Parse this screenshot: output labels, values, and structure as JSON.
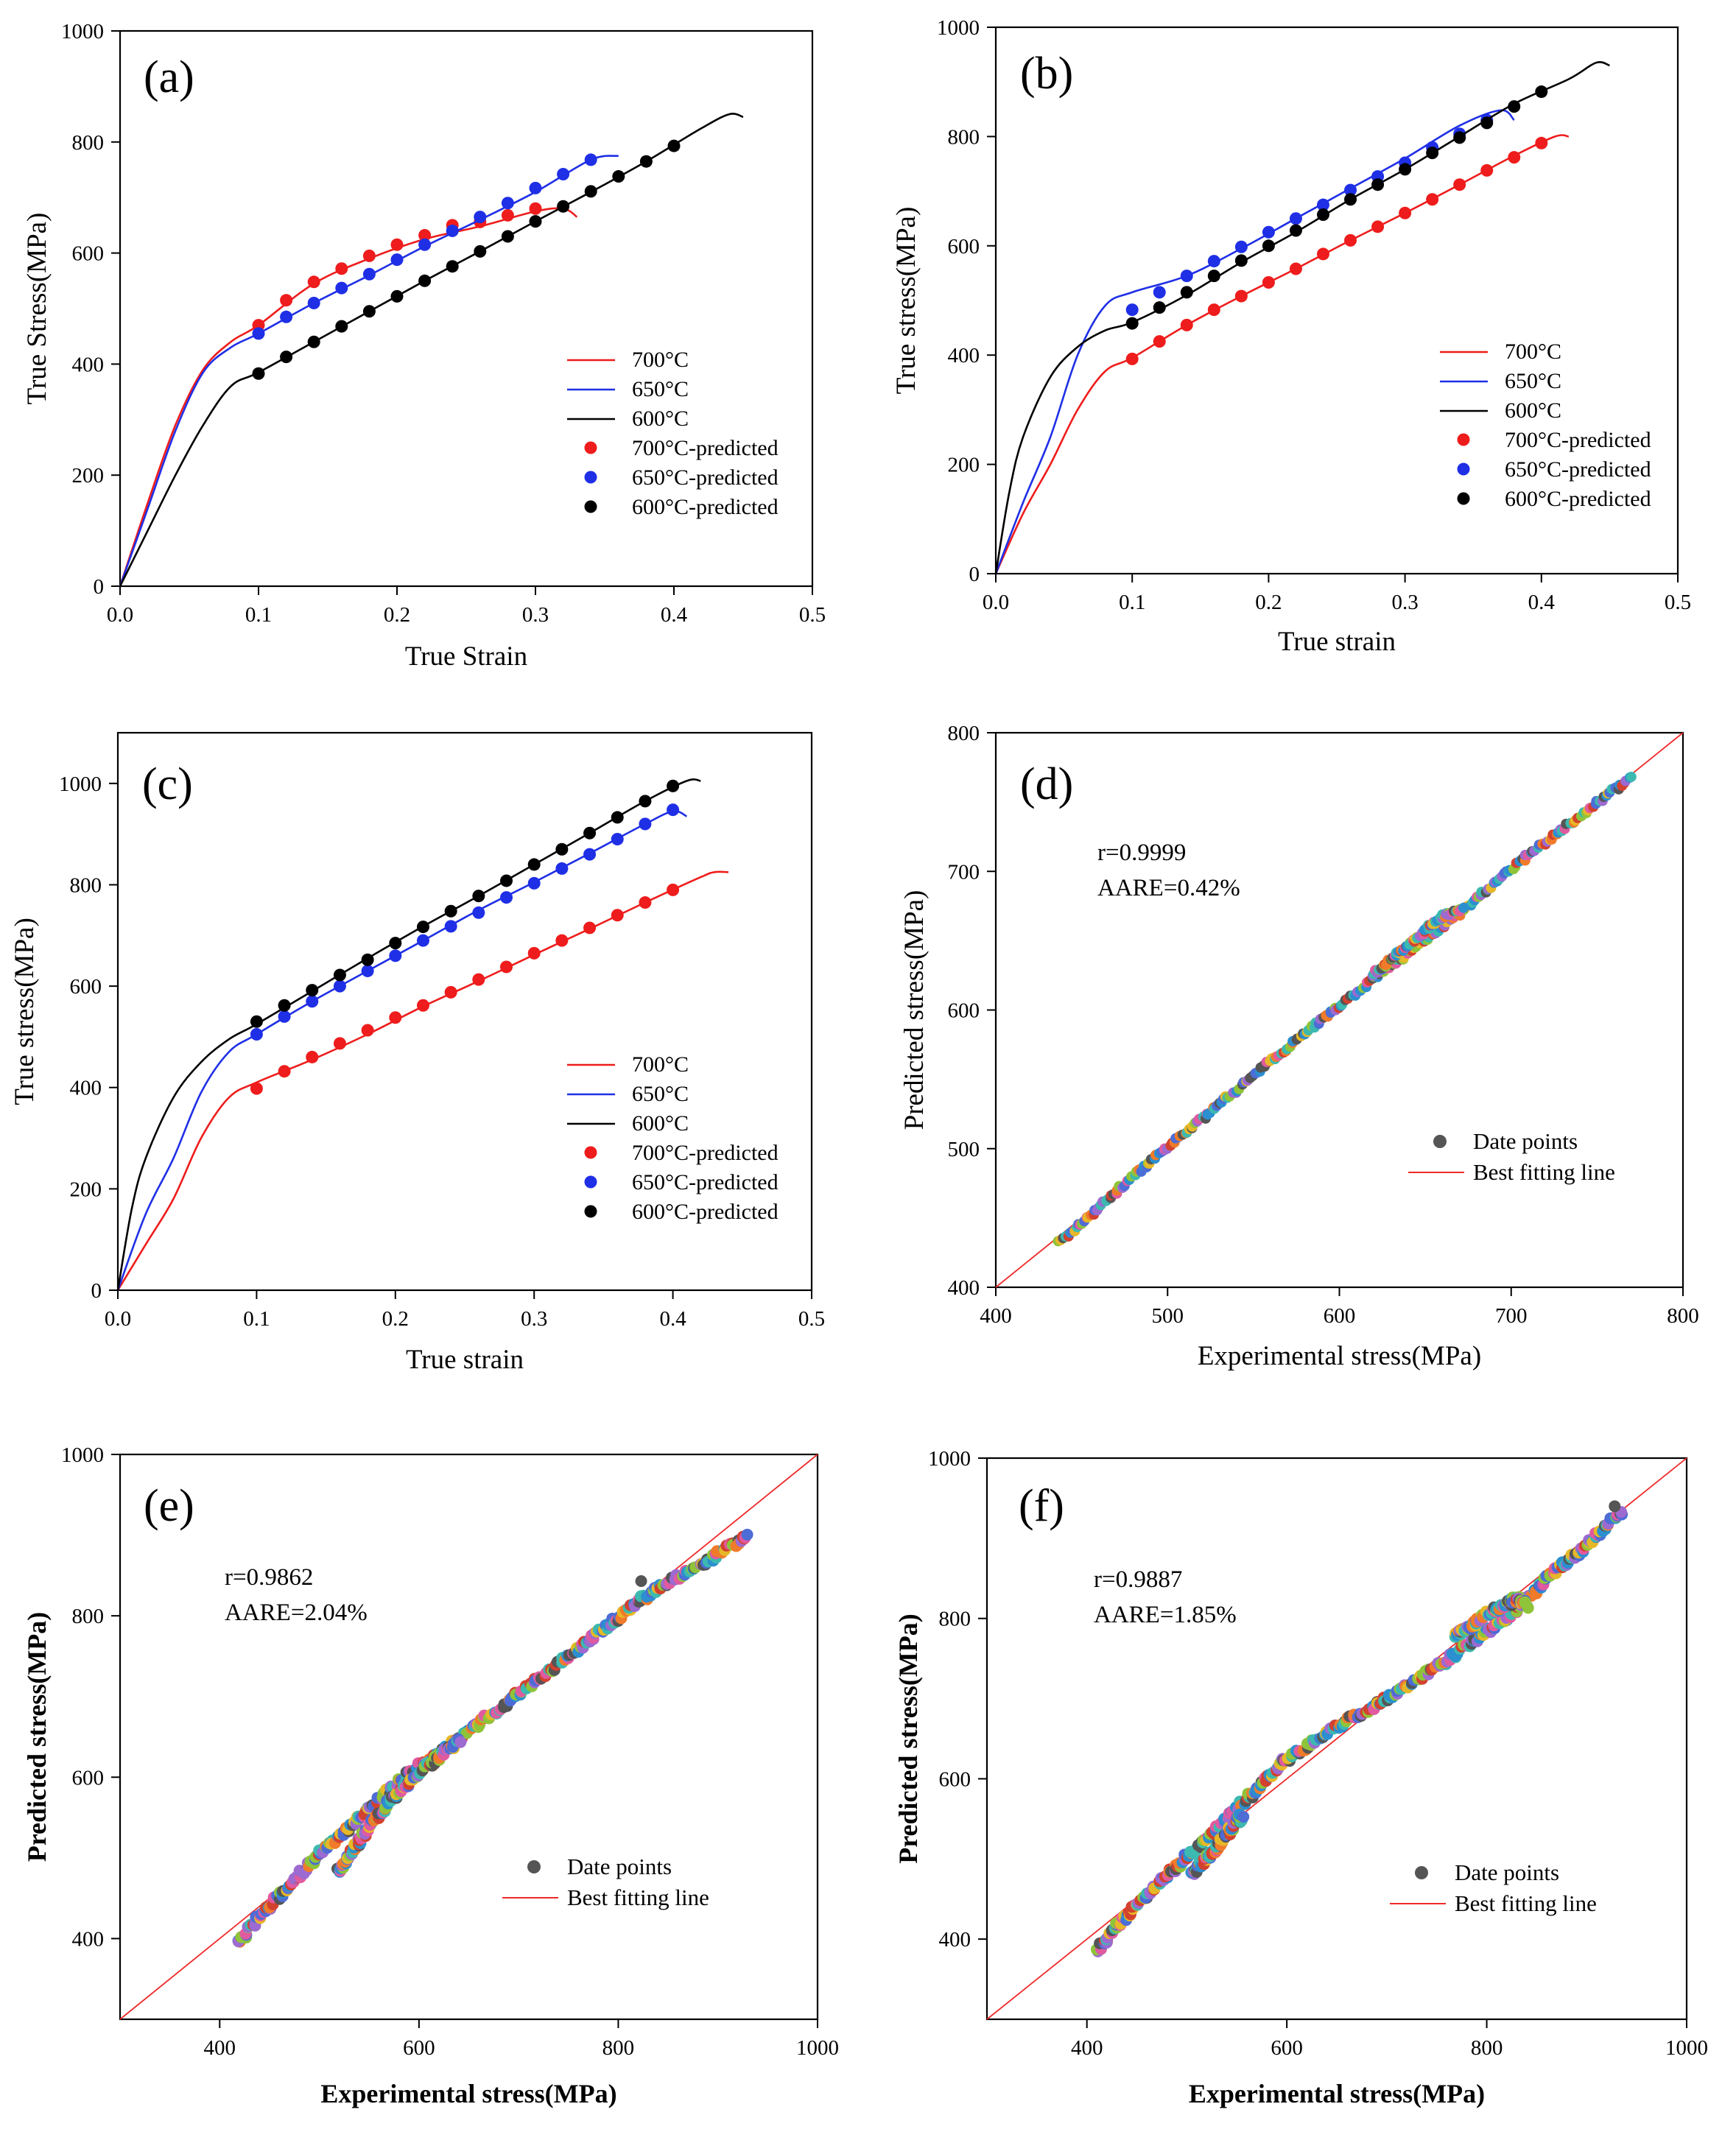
{
  "colors": {
    "c700": "#ee1c1c",
    "c650": "#1f2fe6",
    "c600": "#000000",
    "axis": "#000000",
    "fit": "#ee2a2a",
    "dot": "#555555"
  },
  "chart_data": [
    {
      "id": "a",
      "panel": "(a)",
      "type": "line",
      "xlabel": "True Strain",
      "ylabel": "True Stress(MPa)",
      "xlim": [
        0,
        0.5
      ],
      "ylim": [
        0,
        1000
      ],
      "xticks": [
        "0.0",
        "0.1",
        "0.2",
        "0.3",
        "0.4",
        "0.5"
      ],
      "yticks": [
        "0",
        "200",
        "400",
        "600",
        "800",
        "1000"
      ],
      "legend": {
        "position": "center-right",
        "lines": [
          "700°C",
          "650°C",
          "600°C"
        ],
        "markers": [
          "700°C-predicted",
          "650°C-predicted",
          "600°C-predicted"
        ]
      },
      "series": [
        {
          "name": "700°C",
          "color": "#ee1c1c",
          "x": [
            0,
            0.02,
            0.04,
            0.06,
            0.08,
            0.1,
            0.14,
            0.18,
            0.22,
            0.26,
            0.3,
            0.32,
            0.33
          ],
          "y": [
            0,
            150,
            290,
            390,
            440,
            470,
            545,
            590,
            625,
            648,
            675,
            680,
            665
          ],
          "px": [
            0.1,
            0.12,
            0.14,
            0.16,
            0.18,
            0.2,
            0.22,
            0.24,
            0.26,
            0.28,
            0.3
          ],
          "py": [
            470,
            515,
            548,
            572,
            595,
            615,
            632,
            650,
            656,
            668,
            680
          ]
        },
        {
          "name": "650°C",
          "color": "#1f2fe6",
          "x": [
            0,
            0.02,
            0.04,
            0.06,
            0.08,
            0.1,
            0.14,
            0.18,
            0.22,
            0.26,
            0.3,
            0.34,
            0.36
          ],
          "y": [
            0,
            140,
            280,
            385,
            430,
            455,
            510,
            560,
            612,
            660,
            710,
            768,
            775
          ],
          "px": [
            0.1,
            0.12,
            0.14,
            0.16,
            0.18,
            0.2,
            0.22,
            0.24,
            0.26,
            0.28,
            0.3,
            0.32,
            0.34
          ],
          "py": [
            455,
            485,
            510,
            537,
            562,
            588,
            615,
            640,
            665,
            690,
            717,
            742,
            768
          ]
        },
        {
          "name": "600°C",
          "color": "#000000",
          "x": [
            0,
            0.02,
            0.04,
            0.06,
            0.08,
            0.1,
            0.14,
            0.18,
            0.22,
            0.26,
            0.3,
            0.34,
            0.38,
            0.42,
            0.44,
            0.45
          ],
          "y": [
            0,
            100,
            200,
            290,
            360,
            385,
            440,
            495,
            550,
            603,
            657,
            710,
            765,
            825,
            850,
            845
          ],
          "px": [
            0.1,
            0.12,
            0.14,
            0.16,
            0.18,
            0.2,
            0.22,
            0.24,
            0.26,
            0.28,
            0.3,
            0.32,
            0.34,
            0.36,
            0.38,
            0.4
          ],
          "py": [
            383,
            413,
            440,
            468,
            495,
            522,
            550,
            576,
            603,
            630,
            657,
            684,
            711,
            738,
            765,
            793
          ]
        }
      ]
    },
    {
      "id": "b",
      "panel": "(b)",
      "type": "line",
      "xlabel": "True strain",
      "ylabel": "True stress(MPa)",
      "xlim": [
        0,
        0.5
      ],
      "ylim": [
        0,
        1000
      ],
      "xticks": [
        "0.0",
        "0.1",
        "0.2",
        "0.3",
        "0.4",
        "0.5"
      ],
      "yticks": [
        "0",
        "200",
        "400",
        "600",
        "800",
        "1000"
      ],
      "legend": {
        "position": "center-right",
        "lines": [
          "700°C",
          "650°C",
          "600°C"
        ],
        "markers": [
          "700°C-predicted",
          "650°C-predicted",
          "600°C-predicted"
        ]
      },
      "series": [
        {
          "name": "700°C",
          "color": "#ee1c1c",
          "x": [
            0,
            0.02,
            0.04,
            0.06,
            0.08,
            0.1,
            0.14,
            0.18,
            0.22,
            0.26,
            0.3,
            0.34,
            0.38,
            0.41,
            0.42
          ],
          "y": [
            0,
            110,
            200,
            300,
            370,
            395,
            455,
            508,
            558,
            610,
            660,
            712,
            765,
            800,
            800
          ],
          "px": [
            0.1,
            0.12,
            0.14,
            0.16,
            0.18,
            0.2,
            0.22,
            0.24,
            0.26,
            0.28,
            0.3,
            0.32,
            0.34,
            0.36,
            0.38,
            0.4
          ],
          "py": [
            393,
            425,
            455,
            483,
            508,
            533,
            558,
            585,
            610,
            635,
            660,
            685,
            712,
            738,
            762,
            788
          ]
        },
        {
          "name": "650°C",
          "color": "#1f2fe6",
          "x": [
            0,
            0.02,
            0.04,
            0.06,
            0.08,
            0.1,
            0.14,
            0.18,
            0.22,
            0.26,
            0.3,
            0.34,
            0.37,
            0.38
          ],
          "y": [
            0,
            130,
            250,
            400,
            490,
            515,
            545,
            595,
            650,
            705,
            760,
            820,
            848,
            830
          ],
          "px": [
            0.1,
            0.12,
            0.14,
            0.16,
            0.18,
            0.2,
            0.22,
            0.24,
            0.26,
            0.28,
            0.3,
            0.32,
            0.34,
            0.36
          ],
          "py": [
            483,
            515,
            545,
            572,
            598,
            625,
            650,
            675,
            702,
            727,
            752,
            780,
            805,
            830
          ]
        },
        {
          "name": "600°C",
          "color": "#000000",
          "x": [
            0,
            0.01,
            0.02,
            0.04,
            0.06,
            0.08,
            0.1,
            0.14,
            0.18,
            0.22,
            0.26,
            0.3,
            0.34,
            0.38,
            0.42,
            0.44,
            0.45
          ],
          "y": [
            0,
            150,
            250,
            360,
            415,
            445,
            460,
            510,
            570,
            625,
            685,
            740,
            800,
            860,
            905,
            935,
            930
          ],
          "px": [
            0.1,
            0.12,
            0.14,
            0.16,
            0.18,
            0.2,
            0.22,
            0.24,
            0.26,
            0.28,
            0.3,
            0.32,
            0.34,
            0.36,
            0.38,
            0.4
          ],
          "py": [
            458,
            487,
            515,
            545,
            573,
            600,
            628,
            657,
            685,
            712,
            740,
            770,
            798,
            825,
            855,
            882
          ]
        }
      ]
    },
    {
      "id": "c",
      "panel": "(c)",
      "type": "line",
      "xlabel": "True strain",
      "ylabel": "True stress(MPa)",
      "xlim": [
        0,
        0.5
      ],
      "ylim": [
        0,
        1100
      ],
      "xticks": [
        "0.0",
        "0.1",
        "0.2",
        "0.3",
        "0.4",
        "0.5"
      ],
      "yticks": [
        "0",
        "200",
        "400",
        "600",
        "800",
        "1000"
      ],
      "legend": {
        "position": "center-right",
        "lines": [
          "700°C",
          "650°C",
          "600°C"
        ],
        "markers": [
          "700°C-predicted",
          "650°C-predicted",
          "600°C-predicted"
        ]
      },
      "series": [
        {
          "name": "700°C",
          "color": "#ee1c1c",
          "x": [
            0,
            0.02,
            0.04,
            0.06,
            0.08,
            0.1,
            0.14,
            0.18,
            0.22,
            0.26,
            0.3,
            0.34,
            0.38,
            0.42,
            0.43,
            0.44
          ],
          "y": [
            0,
            90,
            180,
            300,
            380,
            410,
            455,
            505,
            560,
            610,
            662,
            713,
            765,
            815,
            825,
            825
          ],
          "px": [
            0.1,
            0.12,
            0.14,
            0.16,
            0.18,
            0.2,
            0.22,
            0.24,
            0.26,
            0.28,
            0.3,
            0.32,
            0.34,
            0.36,
            0.38,
            0.4
          ],
          "py": [
            398,
            432,
            460,
            487,
            513,
            538,
            562,
            588,
            613,
            638,
            665,
            690,
            715,
            740,
            765,
            790
          ]
        },
        {
          "name": "650°C",
          "color": "#1f2fe6",
          "x": [
            0,
            0.02,
            0.04,
            0.06,
            0.08,
            0.1,
            0.14,
            0.18,
            0.22,
            0.26,
            0.3,
            0.34,
            0.38,
            0.4,
            0.41
          ],
          "y": [
            0,
            150,
            260,
            390,
            470,
            505,
            570,
            630,
            690,
            750,
            805,
            862,
            920,
            945,
            935
          ],
          "px": [
            0.1,
            0.12,
            0.14,
            0.16,
            0.18,
            0.2,
            0.22,
            0.24,
            0.26,
            0.28,
            0.3,
            0.32,
            0.34,
            0.36,
            0.38,
            0.4
          ],
          "py": [
            505,
            540,
            570,
            600,
            630,
            660,
            690,
            718,
            745,
            775,
            803,
            832,
            860,
            890,
            920,
            948
          ]
        },
        {
          "name": "600°C",
          "color": "#000000",
          "x": [
            0,
            0.01,
            0.02,
            0.04,
            0.06,
            0.08,
            0.1,
            0.14,
            0.18,
            0.22,
            0.26,
            0.3,
            0.34,
            0.38,
            0.41,
            0.42
          ],
          "y": [
            0,
            160,
            260,
            380,
            450,
            495,
            525,
            590,
            655,
            718,
            778,
            840,
            902,
            965,
            1005,
            1005
          ],
          "px": [
            0.1,
            0.12,
            0.14,
            0.16,
            0.18,
            0.2,
            0.22,
            0.24,
            0.26,
            0.28,
            0.3,
            0.32,
            0.34,
            0.36,
            0.38,
            0.4
          ],
          "py": [
            530,
            562,
            592,
            622,
            652,
            685,
            717,
            748,
            778,
            808,
            840,
            870,
            902,
            933,
            965,
            995
          ]
        }
      ]
    },
    {
      "id": "d",
      "panel": "(d)",
      "type": "scatter",
      "xlabel": "Experimental stress(MPa)",
      "ylabel": "Predicted stress(MPa)",
      "xlim": [
        400,
        800
      ],
      "ylim": [
        400,
        800
      ],
      "xticks": [
        "400",
        "500",
        "600",
        "700",
        "800"
      ],
      "yticks": [
        "400",
        "500",
        "600",
        "700",
        "800"
      ],
      "r": "r=0.9999",
      "aare": "AARE=0.42%",
      "legend": {
        "position": "bottom-right",
        "points": "Date points",
        "line": "Best fitting line"
      },
      "fit_line": {
        "from": [
          400,
          400
        ],
        "to": [
          800,
          800
        ]
      },
      "points": {
        "band": [
          [
            437,
            432
          ],
          [
            480,
            480
          ],
          [
            530,
            532
          ],
          [
            580,
            584
          ],
          [
            620,
            622
          ],
          [
            660,
            660
          ],
          [
            675,
            675
          ],
          [
            700,
            702
          ],
          [
            740,
            740
          ],
          [
            770,
            768
          ]
        ],
        "bulge": [
          [
            620,
            626
          ],
          [
            660,
            668
          ],
          [
            672,
            673
          ]
        ]
      }
    },
    {
      "id": "e",
      "panel": "(e)",
      "type": "scatter",
      "xlabel": "Experimental stress(MPa)",
      "ylabel": "Predicted stress(MPa)",
      "xlim": [
        300,
        1000
      ],
      "ylim": [
        300,
        1000
      ],
      "xticks": [
        "400",
        "600",
        "800",
        "1000"
      ],
      "yticks": [
        "400",
        "600",
        "800",
        "1000"
      ],
      "r": "r=0.9862",
      "aare": "AARE=2.04%",
      "legend": {
        "position": "bottom-right",
        "points": "Date points",
        "line": "Best fitting line"
      },
      "fit_line": {
        "from": [
          300,
          300
        ],
        "to": [
          1000,
          1000
        ]
      },
      "points": {
        "band": [
          [
            418,
            395
          ],
          [
            450,
            440
          ],
          [
            500,
            505
          ],
          [
            540,
            550
          ],
          [
            580,
            595
          ],
          [
            620,
            630
          ],
          [
            680,
            685
          ],
          [
            740,
            740
          ],
          [
            790,
            790
          ],
          [
            840,
            835
          ],
          [
            880,
            860
          ],
          [
            930,
            900
          ]
        ],
        "lower": [
          [
            518,
            483
          ],
          [
            545,
            530
          ],
          [
            570,
            570
          ],
          [
            600,
            605
          ],
          [
            640,
            645
          ]
        ],
        "outlier": [
          [
            823,
            843
          ]
        ]
      }
    },
    {
      "id": "f",
      "panel": "(f)",
      "type": "scatter",
      "xlabel": "Experimental stress(MPa)",
      "ylabel": "Predicted stress(MPa)",
      "xlim": [
        300,
        1000
      ],
      "ylim": [
        300,
        1000
      ],
      "xticks": [
        "400",
        "600",
        "800",
        "1000"
      ],
      "yticks": [
        "400",
        "600",
        "800",
        "1000"
      ],
      "r": "r=0.9887",
      "aare": "AARE=1.85%",
      "legend": {
        "position": "bottom-right",
        "points": "Date points",
        "line": "Best fitting line"
      },
      "fit_line": {
        "from": [
          300,
          300
        ],
        "to": [
          1000,
          1000
        ]
      },
      "points": {
        "band": [
          [
            410,
            385
          ],
          [
            440,
            430
          ],
          [
            480,
            480
          ],
          [
            520,
            525
          ],
          [
            560,
            575
          ],
          [
            600,
            625
          ],
          [
            650,
            665
          ],
          [
            700,
            700
          ],
          [
            750,
            740
          ],
          [
            790,
            775
          ],
          [
            820,
            800
          ],
          [
            860,
            850
          ],
          [
            900,
            890
          ],
          [
            935,
            935
          ]
        ],
        "lower": [
          [
            505,
            480
          ],
          [
            530,
            515
          ],
          [
            555,
            555
          ]
        ],
        "upper_arc": [
          [
            770,
            780
          ],
          [
            800,
            805
          ],
          [
            830,
            825
          ],
          [
            840,
            815
          ]
        ],
        "outlier": [
          [
            928,
            940
          ]
        ]
      }
    }
  ]
}
